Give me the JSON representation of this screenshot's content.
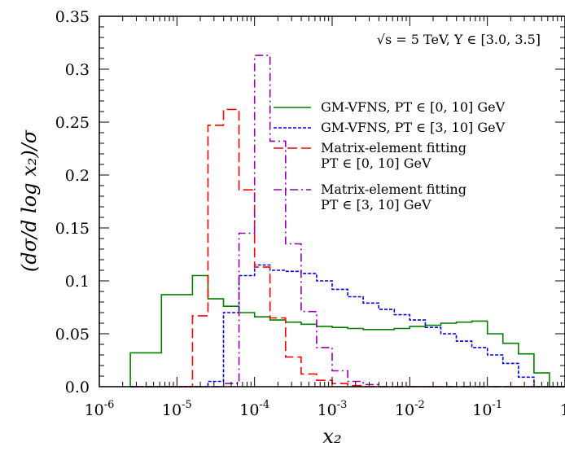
{
  "chart_data": {
    "type": "line",
    "title": "",
    "annotation": "√s = 5 TeV, Y ∈ [3.0, 3.5]",
    "xlabel": "x₂",
    "ylabel": "(dσ/d log x₂)/σ",
    "x_scale": "log",
    "xlim": [
      1e-06,
      1
    ],
    "ylim": [
      0,
      0.35
    ],
    "grid": false,
    "legend_position": "top-right",
    "x_ticks": [
      {
        "value": 1e-06,
        "base": "10",
        "exp": "-6"
      },
      {
        "value": 1e-05,
        "base": "10",
        "exp": "-5"
      },
      {
        "value": 0.0001,
        "base": "10",
        "exp": "-4"
      },
      {
        "value": 0.001,
        "base": "10",
        "exp": "-3"
      },
      {
        "value": 0.01,
        "base": "10",
        "exp": "-2"
      },
      {
        "value": 0.1,
        "base": "10",
        "exp": "-1"
      },
      {
        "value": 1,
        "base": "1",
        "exp": ""
      }
    ],
    "y_ticks": [
      "0.0",
      "0.05",
      "0.1",
      "0.15",
      "0.2",
      "0.25",
      "0.3",
      "0.35"
    ],
    "bin_edges_log10": [
      -5.6,
      -5.2,
      -4.8,
      -4.6,
      -4.4,
      -4.2,
      -4.0,
      -3.8,
      -3.6,
      -3.4,
      -3.2,
      -3.0,
      -2.8,
      -2.6,
      -2.4,
      -2.2,
      -2.0,
      -1.8,
      -1.6,
      -1.4,
      -1.2,
      -1.0,
      -0.8,
      -0.6,
      -0.4,
      -0.2,
      0.0
    ],
    "series": [
      {
        "name": "GM-VFNS, PT ∈ [0, 10] GeV",
        "color": "#008000",
        "dash": "solid",
        "values": [
          0.032,
          0.087,
          0.105,
          0.083,
          0.076,
          0.07,
          0.066,
          0.063,
          0.061,
          0.059,
          0.057,
          0.056,
          0.055,
          0.054,
          0.054,
          0.055,
          0.057,
          0.058,
          0.06,
          0.061,
          0.062,
          0.05,
          0.041,
          0.031,
          0.013,
          0.0
        ]
      },
      {
        "name": "GM-VFNS, PT ∈ [3, 10] GeV",
        "color": "#0000e0",
        "dash": "short-dash",
        "values": [
          0.0,
          0.0,
          0.0,
          0.005,
          0.07,
          0.105,
          0.115,
          0.11,
          0.109,
          0.107,
          0.1,
          0.092,
          0.085,
          0.079,
          0.073,
          0.068,
          0.063,
          0.056,
          0.05,
          0.043,
          0.037,
          0.03,
          0.022,
          0.009,
          0.0,
          0.0
        ]
      },
      {
        "name": "Matrix-element fitting PT ∈ [0, 10] GeV",
        "color": "#ff0000",
        "dash": "long-dash",
        "values": [
          0.0,
          0.0,
          0.067,
          0.247,
          0.262,
          0.186,
          0.113,
          0.065,
          0.028,
          0.012,
          0.006,
          0.003,
          0.001,
          0.0,
          0.0,
          0.0,
          0.0,
          0.0,
          0.0,
          0.0,
          0.0,
          0.0,
          0.0,
          0.0,
          0.0,
          0.0
        ]
      },
      {
        "name": "Matrix-element fitting PT ∈ [3, 10] GeV",
        "color": "#9400b0",
        "dash": "dash-dot",
        "values": [
          0.0,
          0.0,
          0.0,
          0.0,
          0.003,
          0.145,
          0.313,
          0.232,
          0.135,
          0.071,
          0.037,
          0.015,
          0.005,
          0.002,
          0.0,
          0.0,
          0.0,
          0.0,
          0.0,
          0.0,
          0.0,
          0.0,
          0.0,
          0.0,
          0.0,
          0.0
        ]
      }
    ]
  }
}
